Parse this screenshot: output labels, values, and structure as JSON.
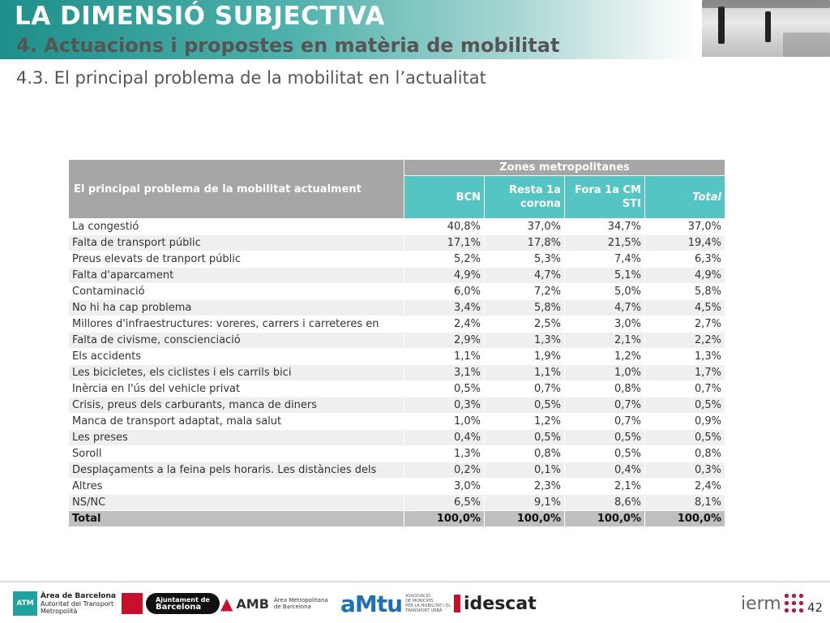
{
  "header": {
    "title": "LA DIMENSIÓ SUBJECTIVA",
    "subtitle": "4. Actuacions i propostes en matèria de mobilitat"
  },
  "section_title": "4.3. El principal problema de la mobilitat en l’actualitat",
  "table": {
    "row_header": "El principal problema de la mobilitat actualment",
    "group_header": "Zones metropolitanes",
    "columns": [
      "BCN",
      "Resta 1a corona",
      "Fora 1a CM STI",
      "Total"
    ],
    "rows": [
      {
        "label": "La congestió",
        "values": [
          "40,8%",
          "37,0%",
          "34,7%",
          "37,0%"
        ]
      },
      {
        "label": "Falta de transport públic",
        "values": [
          "17,1%",
          "17,8%",
          "21,5%",
          "19,4%"
        ]
      },
      {
        "label": "Preus elevats de tranport públic",
        "values": [
          "5,2%",
          "5,3%",
          "7,4%",
          "6,3%"
        ]
      },
      {
        "label": "Falta d'aparcament",
        "values": [
          "4,9%",
          "4,7%",
          "5,1%",
          "4,9%"
        ]
      },
      {
        "label": "Contaminació",
        "values": [
          "6,0%",
          "7,2%",
          "5,0%",
          "5,8%"
        ]
      },
      {
        "label": "No hi ha cap problema",
        "values": [
          "3,4%",
          "5,8%",
          "4,7%",
          "4,5%"
        ]
      },
      {
        "label": "Millores d'infraestructures: voreres, carrers i carreteres en",
        "values": [
          "2,4%",
          "2,5%",
          "3,0%",
          "2,7%"
        ]
      },
      {
        "label": "Falta de civisme, conscienciació",
        "values": [
          "2,9%",
          "1,3%",
          "2,1%",
          "2,2%"
        ]
      },
      {
        "label": "Els accidents",
        "values": [
          "1,1%",
          "1,9%",
          "1,2%",
          "1,3%"
        ]
      },
      {
        "label": "Les bicicletes, els ciclistes i els carrils bici",
        "values": [
          "3,1%",
          "1,1%",
          "1,0%",
          "1,7%"
        ]
      },
      {
        "label": "Inèrcia en l'ús del vehicle privat",
        "values": [
          "0,5%",
          "0,7%",
          "0,8%",
          "0,7%"
        ]
      },
      {
        "label": "Crisis, preus dels carburants, manca de diners",
        "values": [
          "0,3%",
          "0,5%",
          "0,7%",
          "0,5%"
        ]
      },
      {
        "label": "Manca de transport adaptat, mala salut",
        "values": [
          "1,0%",
          "1,2%",
          "0,7%",
          "0,9%"
        ]
      },
      {
        "label": "Les preses",
        "values": [
          "0,4%",
          "0,5%",
          "0,5%",
          "0,5%"
        ]
      },
      {
        "label": "Soroll",
        "values": [
          "1,3%",
          "0,8%",
          "0,5%",
          "0,8%"
        ]
      },
      {
        "label": "Desplaçaments a la feina pels horaris. Les distàncies dels",
        "values": [
          "0,2%",
          "0,1%",
          "0,4%",
          "0,3%"
        ]
      },
      {
        "label": "Altres",
        "values": [
          "3,0%",
          "2,3%",
          "2,1%",
          "2,4%"
        ]
      },
      {
        "label": "NS/NC",
        "values": [
          "6,5%",
          "9,1%",
          "8,6%",
          "8,1%"
        ]
      }
    ],
    "total_row": {
      "label": "Total",
      "values": [
        "100,0%",
        "100,0%",
        "100,0%",
        "100,0%"
      ]
    }
  },
  "footer": {
    "logos": {
      "atm_mark": "ATM",
      "atm_lines": [
        "Àrea de Barcelona",
        "Autoritat del Transport",
        "Metropolità"
      ],
      "bcn_lines": [
        "Ajuntament de",
        "Barcelona"
      ],
      "amb_name": "AMB",
      "amb_lines": [
        "Àrea Metropolitana",
        "de Barcelona"
      ],
      "amtu_name": "aMtu",
      "amtu_lines": [
        "ASSOCIACIÓ",
        "DE MUNICIPIS",
        "PER LA MOBILITAT I EL",
        "TRANSPORT URBÀ"
      ],
      "idescat_name": "idescat",
      "iermb_name": "ierm"
    },
    "page_number": "42"
  },
  "colors": {
    "header_teal": "#1e8f8a",
    "column_header": "#54c5c3",
    "group_header": "#a6a6a6",
    "total_row": "#bfbfbf",
    "stripe": "#efefef"
  }
}
